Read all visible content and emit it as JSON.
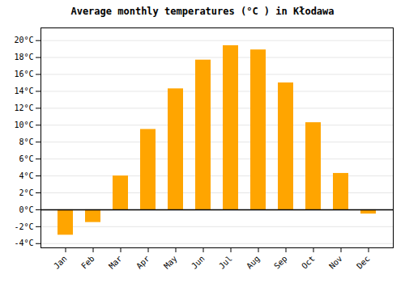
{
  "chart_data": {
    "type": "bar",
    "title": "Average monthly temperatures (°C ) in Kłodawa",
    "categories": [
      "Jan",
      "Feb",
      "Mar",
      "Apr",
      "May",
      "Jun",
      "Jul",
      "Aug",
      "Sep",
      "Oct",
      "Nov",
      "Dec"
    ],
    "values": [
      -3.0,
      -1.5,
      4.0,
      9.5,
      14.3,
      17.7,
      19.4,
      18.9,
      15.0,
      10.3,
      4.3,
      -0.5
    ],
    "color": "#FFA500",
    "ylim": [
      -4.5,
      21.5
    ],
    "yticks": [
      {
        "value": -4,
        "label": "-4°C"
      },
      {
        "value": -2,
        "label": "-2°C"
      },
      {
        "value": 0,
        "label": "0°C"
      },
      {
        "value": 2,
        "label": "2°C"
      },
      {
        "value": 4,
        "label": "4°C"
      },
      {
        "value": 6,
        "label": "6°C"
      },
      {
        "value": 8,
        "label": "8°C"
      },
      {
        "value": 10,
        "label": "10°C"
      },
      {
        "value": 12,
        "label": "12°C"
      },
      {
        "value": 14,
        "label": "14°C"
      },
      {
        "value": 16,
        "label": "16°C"
      },
      {
        "value": 18,
        "label": "18°C"
      },
      {
        "value": 20,
        "label": "20°C"
      }
    ],
    "grid": true
  }
}
